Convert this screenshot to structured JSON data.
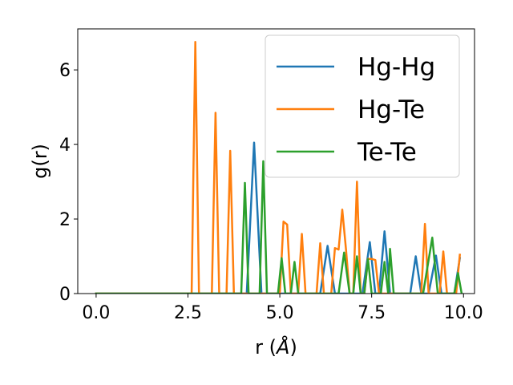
{
  "chart_data": {
    "type": "line",
    "xlabel_prefix": "r (",
    "xlabel_unit": "Å",
    "xlabel_suffix": ")",
    "ylabel": "g(r)",
    "xlim": [
      -0.5,
      10.3
    ],
    "ylim": [
      0,
      7.1
    ],
    "xticks": [
      0.0,
      2.5,
      5.0,
      7.5,
      10.0
    ],
    "xtick_labels": [
      "0.0",
      "2.5",
      "5.0",
      "7.5",
      "10.0"
    ],
    "yticks": [
      0,
      2,
      4,
      6
    ],
    "ytick_labels": [
      "0",
      "2",
      "4",
      "6"
    ],
    "grid": false,
    "legend_position": "top-right",
    "series": [
      {
        "name": "Hg-Hg",
        "color": "#1f77b4",
        "points": [
          [
            0,
            0
          ],
          [
            4.1,
            0
          ],
          [
            4.3,
            4.05
          ],
          [
            4.5,
            0
          ],
          [
            6.1,
            0
          ],
          [
            6.3,
            1.28
          ],
          [
            6.5,
            0
          ],
          [
            7.25,
            0
          ],
          [
            7.45,
            1.38
          ],
          [
            7.6,
            0
          ],
          [
            7.7,
            0
          ],
          [
            7.85,
            1.67
          ],
          [
            8.0,
            0
          ],
          [
            8.55,
            0
          ],
          [
            8.7,
            1.0
          ],
          [
            8.85,
            0
          ],
          [
            9.05,
            0
          ],
          [
            9.25,
            1.02
          ],
          [
            9.4,
            0
          ],
          [
            9.75,
            0
          ],
          [
            9.9,
            0.95
          ]
        ]
      },
      {
        "name": "Hg-Te",
        "color": "#ff7f0e",
        "points": [
          [
            0,
            0
          ],
          [
            2.6,
            0
          ],
          [
            2.7,
            6.75
          ],
          [
            2.8,
            0
          ],
          [
            3.15,
            0
          ],
          [
            3.25,
            4.85
          ],
          [
            3.35,
            0
          ],
          [
            3.55,
            0
          ],
          [
            3.65,
            3.83
          ],
          [
            3.75,
            0
          ],
          [
            5.0,
            0
          ],
          [
            5.1,
            1.93
          ],
          [
            5.2,
            1.85
          ],
          [
            5.3,
            0
          ],
          [
            5.5,
            0
          ],
          [
            5.6,
            1.6
          ],
          [
            5.7,
            0
          ],
          [
            6.0,
            0
          ],
          [
            6.1,
            1.35
          ],
          [
            6.2,
            0
          ],
          [
            6.4,
            0
          ],
          [
            6.5,
            1.22
          ],
          [
            6.6,
            1.18
          ],
          [
            6.7,
            2.25
          ],
          [
            6.8,
            1.2
          ],
          [
            6.9,
            0
          ],
          [
            7.0,
            0
          ],
          [
            7.1,
            3.0
          ],
          [
            7.2,
            0
          ],
          [
            7.3,
            0
          ],
          [
            7.4,
            0.93
          ],
          [
            7.5,
            0.93
          ],
          [
            7.6,
            0.9
          ],
          [
            7.7,
            0
          ],
          [
            8.85,
            0
          ],
          [
            8.95,
            1.87
          ],
          [
            9.05,
            0
          ],
          [
            9.35,
            0
          ],
          [
            9.45,
            1.13
          ],
          [
            9.55,
            0
          ],
          [
            9.8,
            0
          ],
          [
            9.9,
            1.04
          ]
        ]
      },
      {
        "name": "Te-Te",
        "color": "#2ca02c",
        "points": [
          [
            0,
            0
          ],
          [
            3.95,
            0
          ],
          [
            4.05,
            2.97
          ],
          [
            4.15,
            0
          ],
          [
            4.45,
            0
          ],
          [
            4.55,
            3.55
          ],
          [
            4.65,
            0
          ],
          [
            4.95,
            0
          ],
          [
            5.05,
            0.95
          ],
          [
            5.15,
            0
          ],
          [
            5.3,
            0
          ],
          [
            5.4,
            0.85
          ],
          [
            5.5,
            0
          ],
          [
            6.6,
            0
          ],
          [
            6.75,
            1.1
          ],
          [
            6.9,
            0
          ],
          [
            7.0,
            0
          ],
          [
            7.1,
            1.0
          ],
          [
            7.2,
            0
          ],
          [
            7.3,
            0
          ],
          [
            7.4,
            0.92
          ],
          [
            7.5,
            0
          ],
          [
            7.75,
            0
          ],
          [
            7.85,
            0.85
          ],
          [
            7.95,
            0
          ],
          [
            8.0,
            1.2
          ],
          [
            8.1,
            0
          ],
          [
            8.75,
            0
          ],
          [
            8.9,
            0
          ],
          [
            9.15,
            1.5
          ],
          [
            9.3,
            0
          ],
          [
            9.75,
            0
          ],
          [
            9.85,
            0.55
          ],
          [
            9.95,
            0
          ]
        ]
      }
    ]
  }
}
